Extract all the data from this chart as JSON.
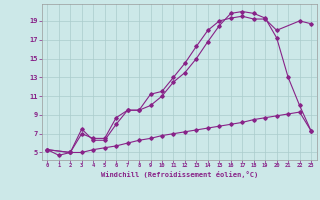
{
  "xlabel": "Windchill (Refroidissement éolien,°C)",
  "bg_color": "#cce8e8",
  "line_color": "#882288",
  "grid_color": "#aacccc",
  "xlim": [
    -0.5,
    23.5
  ],
  "ylim": [
    4.2,
    20.8
  ],
  "xticks": [
    0,
    1,
    2,
    3,
    4,
    5,
    6,
    7,
    8,
    9,
    10,
    11,
    12,
    13,
    14,
    15,
    16,
    17,
    18,
    19,
    20,
    21,
    22,
    23
  ],
  "yticks": [
    5,
    7,
    9,
    11,
    13,
    15,
    17,
    19
  ],
  "curve1_x": [
    0,
    1,
    2,
    3,
    4,
    5,
    6,
    7,
    8,
    9,
    10,
    11,
    12,
    13,
    14,
    15,
    16,
    17,
    18,
    19,
    20,
    21,
    22,
    23
  ],
  "curve1_y": [
    5.3,
    4.7,
    5.0,
    5.0,
    5.3,
    5.5,
    5.7,
    6.0,
    6.3,
    6.5,
    6.8,
    7.0,
    7.2,
    7.4,
    7.6,
    7.8,
    8.0,
    8.2,
    8.5,
    8.7,
    8.9,
    9.1,
    9.3,
    7.3
  ],
  "curve2_x": [
    0,
    2,
    3,
    4,
    5,
    6,
    7,
    8,
    9,
    10,
    11,
    12,
    13,
    14,
    15,
    16,
    17,
    18,
    19,
    20,
    22,
    23
  ],
  "curve2_y": [
    5.3,
    5.0,
    7.0,
    6.5,
    6.5,
    8.7,
    9.5,
    9.5,
    11.2,
    11.5,
    13.0,
    14.5,
    16.3,
    18.0,
    19.0,
    19.3,
    19.5,
    19.2,
    19.2,
    18.0,
    19.0,
    18.7
  ],
  "curve3_x": [
    0,
    2,
    3,
    4,
    5,
    6,
    7,
    8,
    9,
    10,
    11,
    12,
    13,
    14,
    15,
    16,
    17,
    18,
    19,
    20,
    21,
    22,
    23
  ],
  "curve3_y": [
    5.3,
    5.0,
    7.5,
    6.3,
    6.3,
    8.0,
    9.5,
    9.5,
    10.0,
    11.0,
    12.5,
    13.5,
    15.0,
    16.8,
    18.5,
    19.8,
    20.0,
    19.8,
    19.3,
    17.2,
    13.0,
    10.0,
    7.3
  ]
}
